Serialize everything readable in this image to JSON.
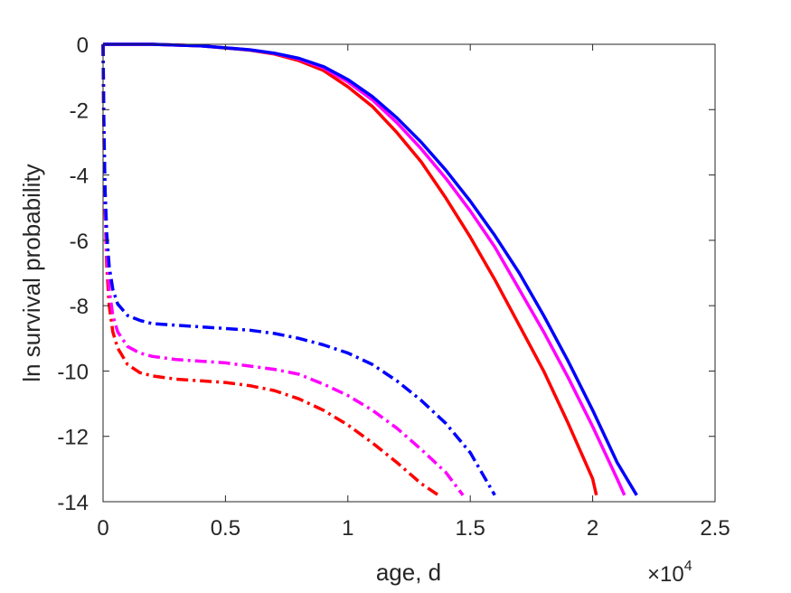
{
  "chart_data": {
    "type": "line",
    "title": "",
    "xlabel": "age, d",
    "ylabel": "ln survival probability",
    "x_exponent_label": "×10",
    "x_exponent_power": "4",
    "xlim": [
      0,
      25000
    ],
    "ylim": [
      -14,
      0
    ],
    "xticks": [
      0,
      5000,
      10000,
      15000,
      20000,
      25000
    ],
    "xtick_labels": [
      "0",
      "0.5",
      "1",
      "1.5",
      "2",
      "2.5"
    ],
    "yticks": [
      0,
      -2,
      -4,
      -6,
      -8,
      -10,
      -12,
      -14
    ],
    "ytick_labels": [
      "0",
      "-2",
      "-4",
      "-6",
      "-8",
      "-10",
      "-12",
      "-14"
    ],
    "grid": false,
    "legend": "none",
    "series": [
      {
        "color": "#ff0000",
        "style": "solid",
        "x": [
          0,
          2000,
          4000,
          6000,
          7000,
          8000,
          9000,
          10000,
          11000,
          12000,
          13000,
          14000,
          15000,
          16000,
          17000,
          18000,
          19000,
          20000,
          20150
        ],
        "y": [
          0,
          0,
          -0.05,
          -0.18,
          -0.3,
          -0.5,
          -0.8,
          -1.3,
          -1.9,
          -2.7,
          -3.6,
          -4.7,
          -5.9,
          -7.2,
          -8.6,
          -10.0,
          -11.6,
          -13.3,
          -13.8
        ]
      },
      {
        "color": "#ff00ff",
        "style": "solid",
        "x": [
          0,
          2000,
          4000,
          6000,
          7000,
          8000,
          9000,
          10000,
          11000,
          12000,
          13000,
          14000,
          15000,
          16000,
          17000,
          18000,
          19000,
          20000,
          21000,
          21300
        ],
        "y": [
          0,
          0,
          -0.05,
          -0.17,
          -0.28,
          -0.45,
          -0.72,
          -1.15,
          -1.7,
          -2.4,
          -3.2,
          -4.1,
          -5.1,
          -6.2,
          -7.5,
          -8.8,
          -10.2,
          -11.7,
          -13.3,
          -13.8
        ]
      },
      {
        "color": "#0000ff",
        "style": "solid",
        "x": [
          0,
          2000,
          4000,
          6000,
          7000,
          8000,
          9000,
          10000,
          11000,
          12000,
          13000,
          14000,
          15000,
          16000,
          17000,
          18000,
          19000,
          20000,
          21000,
          21800
        ],
        "y": [
          0,
          0,
          -0.05,
          -0.17,
          -0.27,
          -0.43,
          -0.68,
          -1.08,
          -1.6,
          -2.25,
          -3.0,
          -3.85,
          -4.8,
          -5.85,
          -7.0,
          -8.3,
          -9.7,
          -11.2,
          -12.8,
          -13.8
        ]
      },
      {
        "color": "#ff0000",
        "style": "dashdot",
        "x": [
          0,
          30,
          80,
          150,
          250,
          400,
          600,
          1000,
          1500,
          2000,
          3000,
          4000,
          5000,
          6000,
          7000,
          8000,
          9000,
          10000,
          11000,
          12000,
          13000,
          13700
        ],
        "y": [
          0,
          -2.5,
          -5.0,
          -6.8,
          -8.0,
          -8.8,
          -9.3,
          -9.8,
          -10.05,
          -10.15,
          -10.25,
          -10.3,
          -10.35,
          -10.45,
          -10.6,
          -10.85,
          -11.2,
          -11.65,
          -12.2,
          -12.8,
          -13.45,
          -13.8
        ]
      },
      {
        "color": "#ff00ff",
        "style": "dashdot",
        "x": [
          0,
          30,
          80,
          150,
          250,
          400,
          600,
          1000,
          1500,
          2000,
          3000,
          4000,
          5000,
          6000,
          7000,
          8000,
          9000,
          10000,
          11000,
          12000,
          13000,
          14000,
          14700
        ],
        "y": [
          0,
          -2.4,
          -4.8,
          -6.4,
          -7.5,
          -8.3,
          -8.8,
          -9.25,
          -9.45,
          -9.55,
          -9.65,
          -9.7,
          -9.75,
          -9.85,
          -9.95,
          -10.1,
          -10.4,
          -10.75,
          -11.2,
          -11.75,
          -12.4,
          -13.1,
          -13.8
        ]
      },
      {
        "color": "#0000ff",
        "style": "dashdot",
        "x": [
          0,
          30,
          80,
          150,
          250,
          400,
          600,
          1000,
          1500,
          2000,
          3000,
          4000,
          5000,
          6000,
          7000,
          8000,
          9000,
          10000,
          11000,
          12000,
          13000,
          14000,
          15000,
          16000
        ],
        "y": [
          0,
          -2.2,
          -4.4,
          -5.8,
          -6.8,
          -7.5,
          -7.95,
          -8.3,
          -8.45,
          -8.55,
          -8.6,
          -8.65,
          -8.7,
          -8.75,
          -8.85,
          -9.0,
          -9.2,
          -9.45,
          -9.8,
          -10.3,
          -10.9,
          -11.6,
          -12.5,
          -13.8
        ]
      }
    ]
  }
}
